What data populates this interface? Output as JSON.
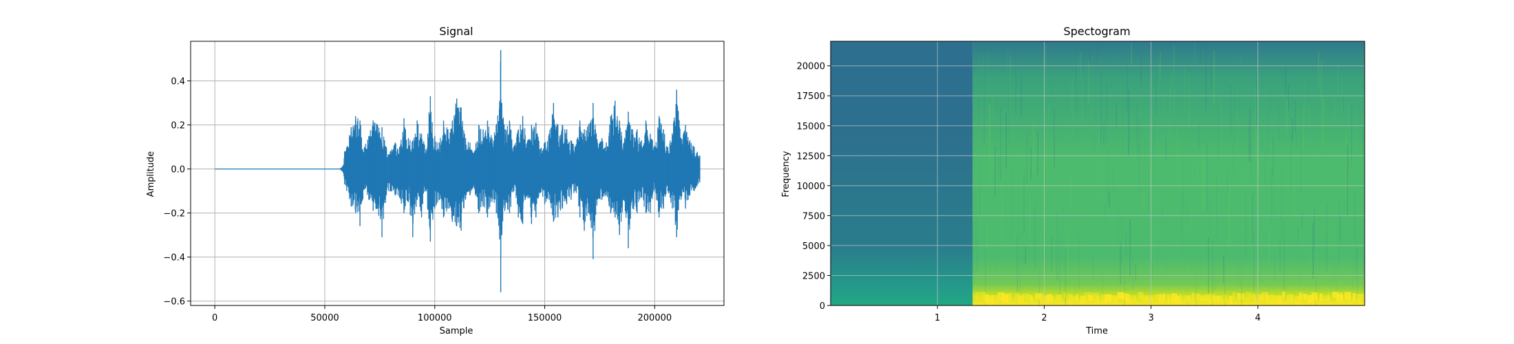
{
  "chart_data": [
    {
      "type": "line",
      "title": "Signal",
      "xlabel": "Sample",
      "ylabel": "Amplitude",
      "xlim": [
        -11000,
        231500
      ],
      "ylim": [
        -0.62,
        0.58
      ],
      "xticks": [
        0,
        50000,
        100000,
        150000,
        200000
      ],
      "xtick_labels": [
        "0",
        "50000",
        "100000",
        "150000",
        "200000"
      ],
      "yticks": [
        -0.6,
        -0.4,
        -0.2,
        0.0,
        0.2,
        0.4
      ],
      "ytick_labels": [
        "−0.6",
        "−0.4",
        "−0.2",
        "0.0",
        "0.2",
        "0.4"
      ],
      "grid": true,
      "color": "#1f77b4",
      "series": [
        {
          "x": [
            0,
            57000,
            58500,
            59000,
            60000,
            62000,
            64000,
            66000,
            68000,
            70000,
            72000,
            74000,
            76000,
            78000,
            80000,
            82000,
            84000,
            86000,
            88000,
            90000,
            92000,
            94000,
            96000,
            98000,
            100000,
            102000,
            104000,
            106000,
            108000,
            110000,
            112000,
            114000,
            116000,
            118000,
            120000,
            122000,
            124000,
            126000,
            128000,
            129500,
            130000,
            130500,
            132000,
            134000,
            136000,
            138000,
            140000,
            142000,
            144000,
            146000,
            148000,
            150000,
            152000,
            154000,
            156000,
            158000,
            160000,
            162000,
            164000,
            166000,
            168000,
            170000,
            172000,
            174000,
            176000,
            178000,
            180000,
            182000,
            184000,
            186000,
            188000,
            190000,
            192000,
            194000,
            196000,
            198000,
            200000,
            202000,
            204000,
            206000,
            208000,
            210000,
            212000,
            214000,
            216000,
            218000,
            220500
          ],
          "y_upper": [
            0.0,
            0.0,
            0.02,
            0.08,
            0.1,
            0.19,
            0.24,
            0.22,
            0.1,
            0.15,
            0.22,
            0.2,
            0.19,
            0.1,
            0.08,
            0.12,
            0.1,
            0.23,
            0.14,
            0.13,
            0.22,
            0.16,
            0.09,
            0.33,
            0.15,
            0.12,
            0.22,
            0.18,
            0.22,
            0.32,
            0.28,
            0.14,
            0.12,
            0.08,
            0.2,
            0.18,
            0.22,
            0.14,
            0.2,
            0.3,
            0.54,
            0.3,
            0.18,
            0.22,
            0.1,
            0.18,
            0.24,
            0.12,
            0.2,
            0.21,
            0.09,
            0.12,
            0.16,
            0.3,
            0.2,
            0.2,
            0.18,
            0.13,
            0.1,
            0.22,
            0.18,
            0.2,
            0.3,
            0.12,
            0.14,
            0.12,
            0.24,
            0.31,
            0.22,
            0.12,
            0.26,
            0.18,
            0.18,
            0.13,
            0.22,
            0.16,
            0.1,
            0.24,
            0.18,
            0.1,
            0.16,
            0.36,
            0.14,
            0.2,
            0.13,
            0.1,
            0.06
          ],
          "y_lower": [
            0.0,
            0.0,
            -0.02,
            -0.07,
            -0.1,
            -0.17,
            -0.2,
            -0.26,
            -0.09,
            -0.14,
            -0.19,
            -0.18,
            -0.31,
            -0.12,
            -0.1,
            -0.12,
            -0.13,
            -0.2,
            -0.15,
            -0.31,
            -0.14,
            -0.22,
            -0.1,
            -0.33,
            -0.18,
            -0.14,
            -0.22,
            -0.18,
            -0.24,
            -0.26,
            -0.28,
            -0.14,
            -0.12,
            -0.09,
            -0.2,
            -0.17,
            -0.22,
            -0.15,
            -0.2,
            -0.32,
            -0.56,
            -0.3,
            -0.18,
            -0.2,
            -0.1,
            -0.22,
            -0.25,
            -0.12,
            -0.25,
            -0.22,
            -0.1,
            -0.16,
            -0.14,
            -0.24,
            -0.22,
            -0.18,
            -0.16,
            -0.14,
            -0.1,
            -0.22,
            -0.28,
            -0.2,
            -0.41,
            -0.14,
            -0.14,
            -0.12,
            -0.2,
            -0.22,
            -0.3,
            -0.14,
            -0.36,
            -0.18,
            -0.2,
            -0.13,
            -0.2,
            -0.2,
            -0.1,
            -0.22,
            -0.18,
            -0.1,
            -0.18,
            -0.31,
            -0.14,
            -0.18,
            -0.12,
            -0.1,
            -0.06
          ]
        }
      ]
    },
    {
      "type": "heatmap",
      "title": "Spectogram",
      "xlabel": "Time",
      "ylabel": "Frequency",
      "xlim": [
        0.0,
        5.0
      ],
      "ylim": [
        0,
        22050
      ],
      "xticks": [
        1,
        2,
        3,
        4
      ],
      "xtick_labels": [
        "1",
        "2",
        "3",
        "4"
      ],
      "yticks": [
        0,
        2500,
        5000,
        7500,
        10000,
        12500,
        15000,
        17500,
        20000
      ],
      "ytick_labels": [
        "0",
        "2500",
        "5000",
        "7500",
        "10000",
        "12500",
        "15000",
        "17500",
        "20000"
      ],
      "grid": true,
      "colormap": "viridis",
      "onset_time": 1.33,
      "colors": {
        "quiet_top": "#2d6f8e",
        "quiet_mid": "#2a7d8c",
        "quiet_low": "#249a8a",
        "quiet_floor": "#22a784",
        "active_top": "#30798d",
        "active_upper": "#3aa27c",
        "active_mid": "#4dbb6d",
        "active_low": "#73c957",
        "active_floor": "#c7e020",
        "active_peak": "#fde725"
      }
    }
  ]
}
